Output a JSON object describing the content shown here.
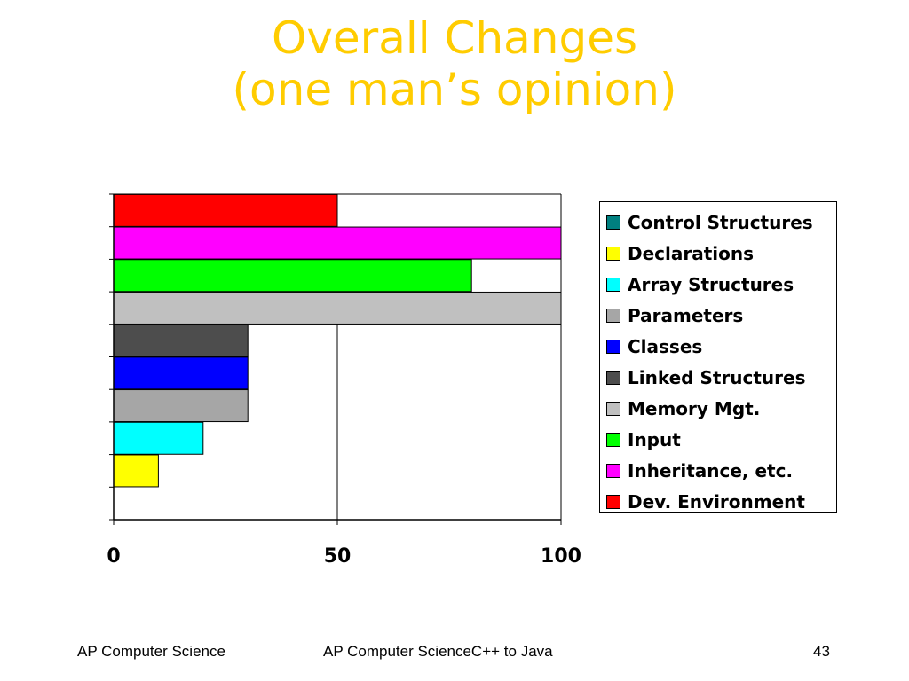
{
  "title": {
    "line1": "Overall Changes",
    "line2": "(one man’s opinion)"
  },
  "colors": {
    "title": "#FFCC00"
  },
  "chart_data": {
    "type": "bar",
    "orientation": "horizontal",
    "title": "",
    "xlabel": "",
    "ylabel": "",
    "xlim": [
      0,
      100
    ],
    "x_ticks": [
      "0",
      "50",
      "100"
    ],
    "grid": "vertical lines at 50 and 100",
    "legend_placement": "right",
    "categories": [
      "Control Structures",
      "Declarations",
      "Array Structures",
      "Parameters",
      "Classes",
      "Linked Structures",
      "Memory Mgt.",
      "Input",
      "Inheritance, etc.",
      "Dev. Environment"
    ],
    "values": [
      0,
      10,
      20,
      30,
      30,
      30,
      100,
      80,
      100,
      50
    ],
    "colors": [
      "#008080",
      "#FFFF00",
      "#00FFFF",
      "#A6A6A6",
      "#0000FF",
      "#4D4D4D",
      "#C0C0C0",
      "#00FF00",
      "#FF00FF",
      "#FF0000"
    ]
  },
  "footer": {
    "left": "AP Computer Science",
    "center": "AP Computer ScienceC++ to Java",
    "page_number": "43"
  }
}
